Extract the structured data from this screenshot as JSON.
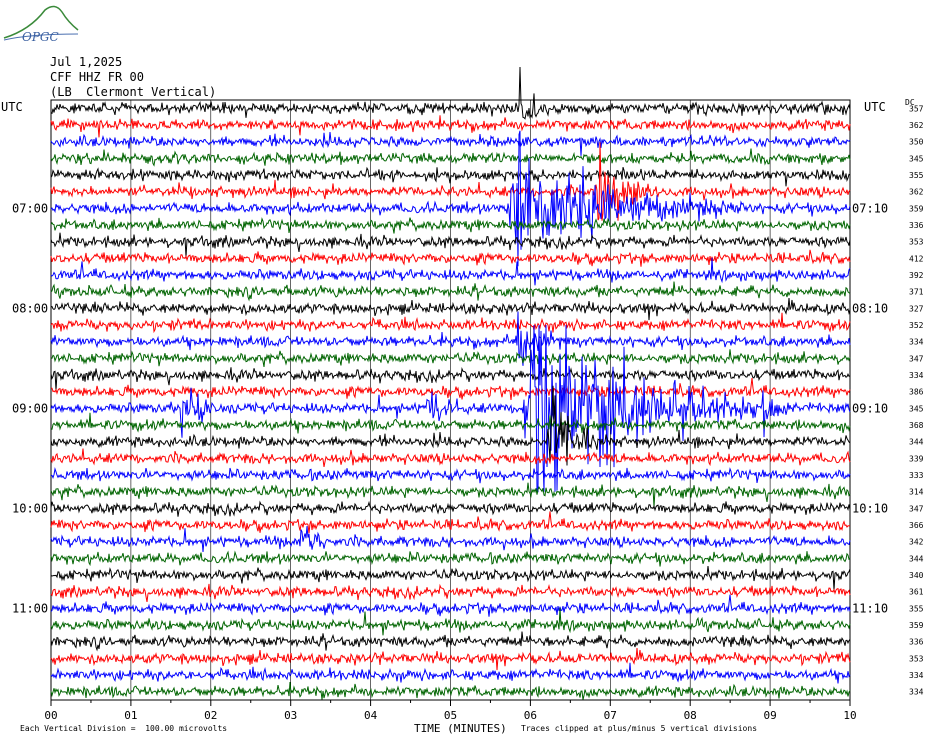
{
  "header": {
    "logo_text": "OPGC",
    "date": "Jul 1,2025",
    "station": "CFF HHZ FR 00",
    "location": "(LB  Clermont Vertical)"
  },
  "left_label": "UTC",
  "right_label": "UTC",
  "dc_label": "DC",
  "colors": [
    "#000000",
    "#ff0000",
    "#0000ff",
    "#006400"
  ],
  "chart_data": {
    "type": "line",
    "xlabel": "TIME (MINUTES)",
    "xlim": [
      0,
      10
    ],
    "x_ticks": [
      "00",
      "01",
      "02",
      "03",
      "04",
      "05",
      "06",
      "07",
      "08",
      "09",
      "10"
    ],
    "left_time_labels": [
      {
        "row": 6,
        "label": "07:00"
      },
      {
        "row": 12,
        "label": "08:00"
      },
      {
        "row": 18,
        "label": "09:00"
      },
      {
        "row": 24,
        "label": "10:00"
      },
      {
        "row": 30,
        "label": "11:00"
      }
    ],
    "right_time_labels": [
      {
        "row": 6,
        "label": "07:10"
      },
      {
        "row": 12,
        "label": "08:10"
      },
      {
        "row": 18,
        "label": "09:10"
      },
      {
        "row": 24,
        "label": "10:10"
      },
      {
        "row": 30,
        "label": "11:10"
      }
    ],
    "dc_offsets": [
      357,
      362,
      350,
      345,
      355,
      362,
      359,
      336,
      353,
      412,
      392,
      371,
      327,
      352,
      334,
      347,
      334,
      386,
      345,
      368,
      344,
      339,
      333,
      314,
      347,
      366,
      342,
      344,
      340,
      361,
      355,
      359,
      336,
      353,
      334,
      334
    ],
    "events": [
      {
        "row": 0,
        "minute": 5.85,
        "duration": 0.3,
        "amplitude": 1.6
      },
      {
        "row": 6,
        "minute": 5.7,
        "duration": 3.0,
        "amplitude": 2.4
      },
      {
        "row": 5,
        "minute": 6.8,
        "duration": 1.0,
        "amplitude": 1.6
      },
      {
        "row": 14,
        "minute": 5.8,
        "duration": 0.6,
        "amplitude": 1.3
      },
      {
        "row": 18,
        "minute": 1.6,
        "duration": 0.5,
        "amplitude": 1.5
      },
      {
        "row": 18,
        "minute": 4.7,
        "duration": 0.4,
        "amplitude": 1.4
      },
      {
        "row": 18,
        "minute": 5.9,
        "duration": 3.0,
        "amplitude": 4.5
      },
      {
        "row": 20,
        "minute": 6.2,
        "duration": 0.8,
        "amplitude": 2.2
      },
      {
        "row": 18,
        "minute": 8.9,
        "duration": 0.4,
        "amplitude": 0.9
      },
      {
        "row": 26,
        "minute": 3.1,
        "duration": 0.4,
        "amplitude": 0.9
      }
    ]
  },
  "footer": {
    "division": "Each Vertical Division =  100.00 microvolts",
    "clipping": "Traces clipped at plus/minus 5 vertical divisions"
  }
}
